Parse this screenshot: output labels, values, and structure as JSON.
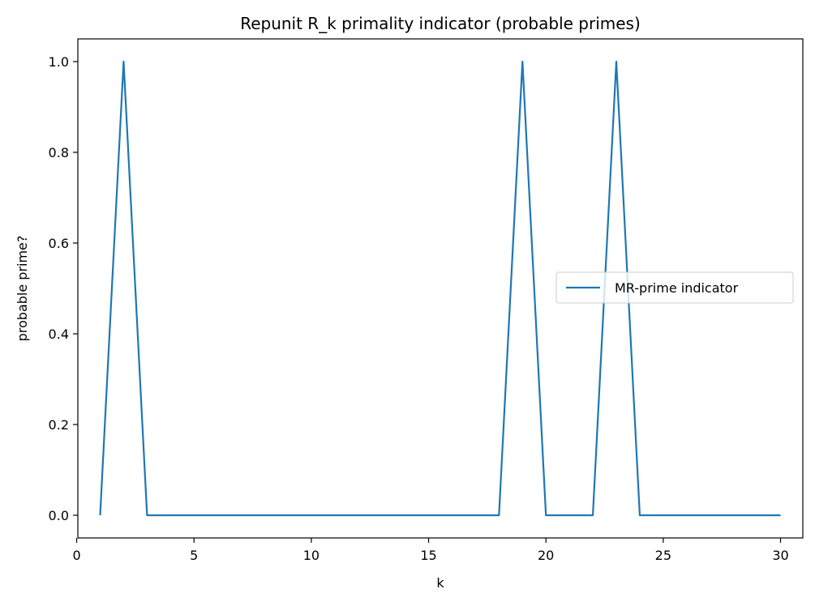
{
  "chart_data": {
    "type": "line",
    "title": "Repunit R_k primality indicator (probable primes)",
    "xlabel": "k",
    "ylabel": "probable prime?",
    "xlim": [
      0.05,
      30.95
    ],
    "ylim": [
      -0.05,
      1.05
    ],
    "xticks": [
      0,
      5,
      10,
      15,
      20,
      25,
      30
    ],
    "xtick_labels": [
      "0",
      "5",
      "10",
      "15",
      "20",
      "25",
      "30"
    ],
    "yticks": [
      0.0,
      0.2,
      0.4,
      0.6,
      0.8,
      1.0
    ],
    "ytick_labels": [
      "0.0",
      "0.2",
      "0.4",
      "0.6",
      "0.8",
      "1.0"
    ],
    "grid": false,
    "legend_position": "center-right",
    "series": [
      {
        "name": "MR-prime indicator",
        "color": "#1f77b4",
        "x": [
          1,
          2,
          3,
          4,
          5,
          6,
          7,
          8,
          9,
          10,
          11,
          12,
          13,
          14,
          15,
          16,
          17,
          18,
          19,
          20,
          21,
          22,
          23,
          24,
          25,
          26,
          27,
          28,
          29,
          30
        ],
        "y": [
          0,
          1,
          0,
          0,
          0,
          0,
          0,
          0,
          0,
          0,
          0,
          0,
          0,
          0,
          0,
          0,
          0,
          0,
          1,
          0,
          0,
          0,
          1,
          0,
          0,
          0,
          0,
          0,
          0,
          0
        ]
      }
    ]
  }
}
